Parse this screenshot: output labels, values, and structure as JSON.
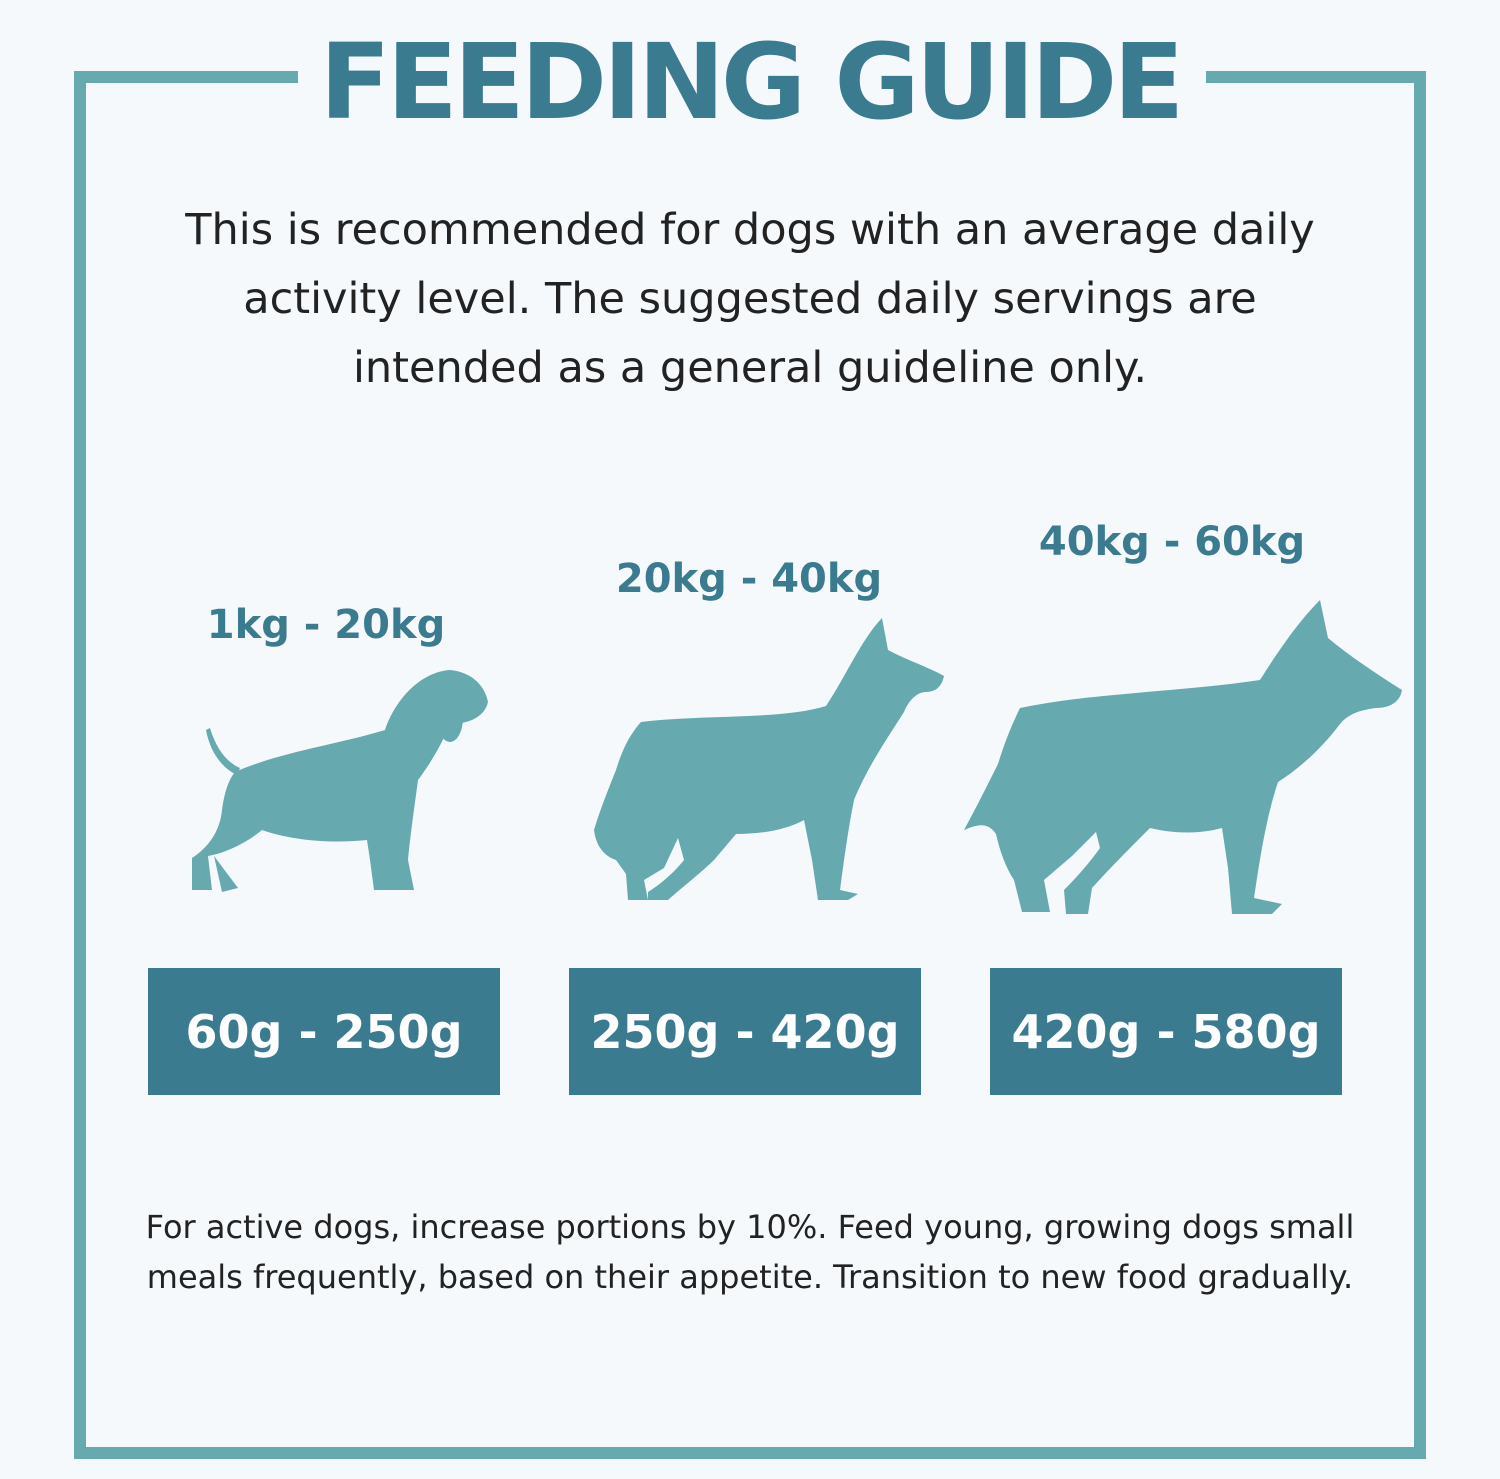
{
  "title": "FEEDING GUIDE",
  "intro": "This is recommended for dogs with an average daily activity level. The suggested daily servings are intended as a general guideline only.",
  "tiers": [
    {
      "weight": "1kg - 20kg",
      "portion": "60g - 250g",
      "icon": "small-dog-icon"
    },
    {
      "weight": "20kg - 40kg",
      "portion": "250g - 420g",
      "icon": "medium-dog-icon"
    },
    {
      "weight": "40kg - 60kg",
      "portion": "420g - 580g",
      "icon": "large-dog-icon"
    }
  ],
  "footnote": "For active dogs, increase portions by 10%. Feed young, growing dogs small meals frequently, based on their appetite. Transition to new food gradually.",
  "colors": {
    "background": "#f5f9fc",
    "frame": "#66aab0",
    "accent": "#3a7b90",
    "dog_silhouette": "#66aab0",
    "portion_text": "#ffffff",
    "body_text": "#222222"
  }
}
